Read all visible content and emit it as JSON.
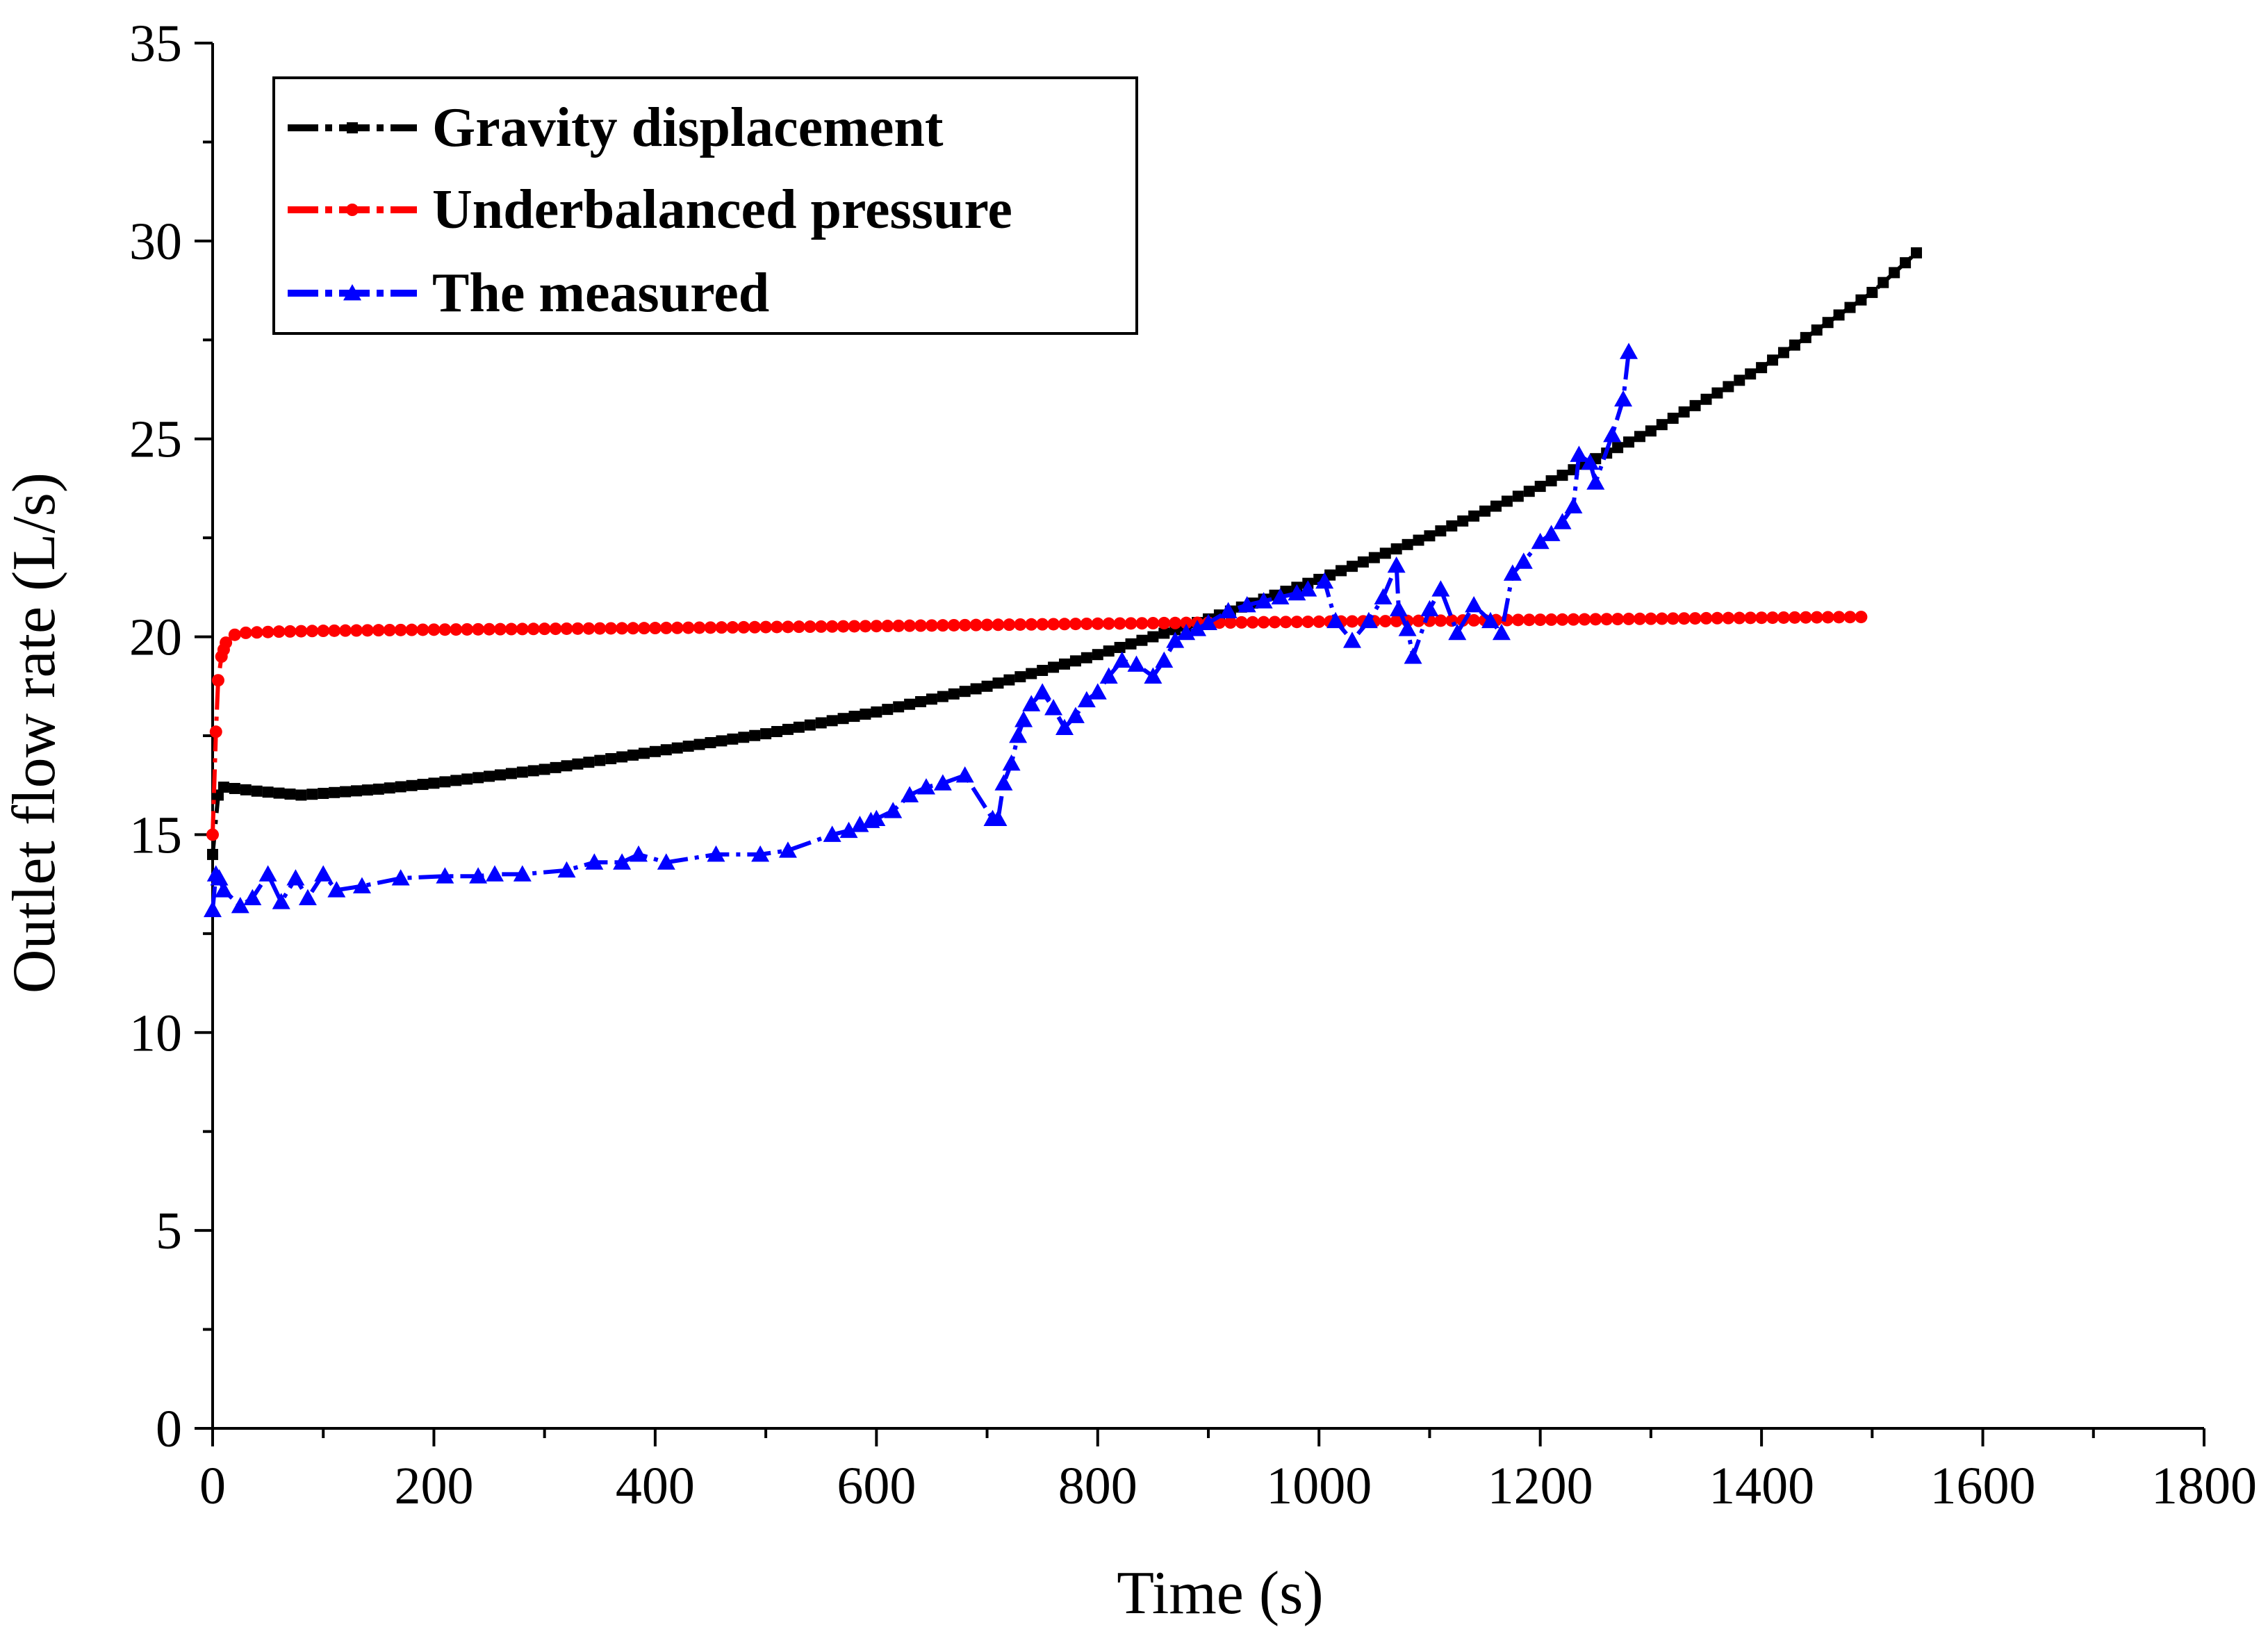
{
  "chart_data": {
    "type": "line",
    "title": "",
    "xlabel": "Time (s)",
    "ylabel": "Outlet flow rate (L/s)",
    "xlim": [
      0,
      1800
    ],
    "ylim": [
      0,
      35
    ],
    "xticks": [
      0,
      200,
      400,
      600,
      800,
      1000,
      1200,
      1400,
      1600,
      1800
    ],
    "yticks": [
      0,
      5,
      10,
      15,
      20,
      25,
      30,
      35
    ],
    "xtick_labels": [
      "0",
      "200",
      "400",
      "600",
      "800",
      "1000",
      "1200",
      "1400",
      "1600",
      "1800"
    ],
    "ytick_labels": [
      "0",
      "5",
      "10",
      "15",
      "20",
      "25",
      "30",
      "35"
    ],
    "grid": false,
    "legend_position": "top-left",
    "series": [
      {
        "name": "Gravity displacement",
        "color": "#000000",
        "marker": "square",
        "line_style": "dash-dot",
        "generated": true,
        "step": 10,
        "x_start": 0,
        "x_end": 1540,
        "anchors": {
          "x": [
            0,
            5,
            10,
            40,
            80,
            150,
            200,
            300,
            400,
            500,
            600,
            700,
            800,
            900,
            1000,
            1100,
            1200,
            1300,
            1400,
            1500,
            1540
          ],
          "y": [
            14.5,
            16.0,
            16.2,
            16.1,
            16.0,
            16.15,
            16.3,
            16.65,
            17.1,
            17.55,
            18.1,
            18.75,
            19.55,
            20.45,
            21.45,
            22.55,
            23.8,
            25.2,
            26.8,
            28.7,
            29.7
          ]
        }
      },
      {
        "name": "Underbalanced pressure",
        "color": "#ff0000",
        "marker": "circle",
        "line_style": "dash-dot",
        "generated": true,
        "step": 10,
        "x_start": 0,
        "x_end": 1490,
        "anchors": {
          "x": [
            0,
            3,
            5,
            8,
            12,
            20,
            30,
            60,
            100,
            200,
            400,
            600,
            800,
            1000,
            1200,
            1400,
            1490
          ],
          "y": [
            15.0,
            17.6,
            18.9,
            19.5,
            19.85,
            20.05,
            20.1,
            20.13,
            20.15,
            20.18,
            20.22,
            20.27,
            20.33,
            20.38,
            20.43,
            20.48,
            20.5
          ]
        }
      },
      {
        "name": "The measured",
        "color": "#0000ff",
        "marker": "triangle",
        "line_style": "dash-dot",
        "generated": false,
        "x": [
          0,
          3,
          6,
          10,
          25,
          36,
          50,
          62,
          75,
          86,
          100,
          112,
          135,
          170,
          210,
          240,
          255,
          280,
          320,
          345,
          370,
          385,
          410,
          455,
          495,
          520,
          560,
          575,
          585,
          595,
          600,
          615,
          630,
          645,
          660,
          680,
          705,
          710,
          715,
          722,
          728,
          733,
          740,
          750,
          760,
          770,
          780,
          790,
          800,
          810,
          822,
          835,
          850,
          860,
          870,
          880,
          890,
          900,
          918,
          935,
          950,
          965,
          980,
          990,
          1005,
          1015,
          1030,
          1045,
          1058,
          1070,
          1072,
          1080,
          1085,
          1100,
          1110,
          1125,
          1140,
          1155,
          1165,
          1175,
          1185,
          1200,
          1210,
          1220,
          1230,
          1235,
          1245,
          1250,
          1265,
          1275,
          1280
        ],
        "y": [
          13.1,
          14.0,
          13.9,
          13.6,
          13.2,
          13.4,
          14.0,
          13.3,
          13.9,
          13.4,
          14.0,
          13.6,
          13.7,
          13.9,
          13.95,
          13.95,
          14.0,
          14.0,
          14.1,
          14.3,
          14.3,
          14.5,
          14.3,
          14.5,
          14.5,
          14.6,
          15.0,
          15.1,
          15.25,
          15.35,
          15.4,
          15.6,
          16.0,
          16.2,
          16.3,
          16.5,
          15.4,
          15.4,
          16.3,
          16.8,
          17.5,
          17.9,
          18.3,
          18.6,
          18.2,
          17.7,
          18.0,
          18.4,
          18.6,
          19.0,
          19.4,
          19.3,
          19.0,
          19.4,
          19.9,
          20.1,
          20.2,
          20.35,
          20.65,
          20.8,
          20.9,
          21.0,
          21.1,
          21.2,
          21.4,
          20.4,
          19.9,
          20.4,
          21.0,
          21.8,
          20.7,
          20.2,
          19.5,
          20.7,
          21.2,
          20.1,
          20.8,
          20.4,
          20.1,
          21.6,
          21.9,
          22.4,
          22.6,
          22.9,
          23.3,
          24.6,
          24.4,
          23.9,
          25.1,
          26.0,
          27.2
        ]
      }
    ]
  }
}
